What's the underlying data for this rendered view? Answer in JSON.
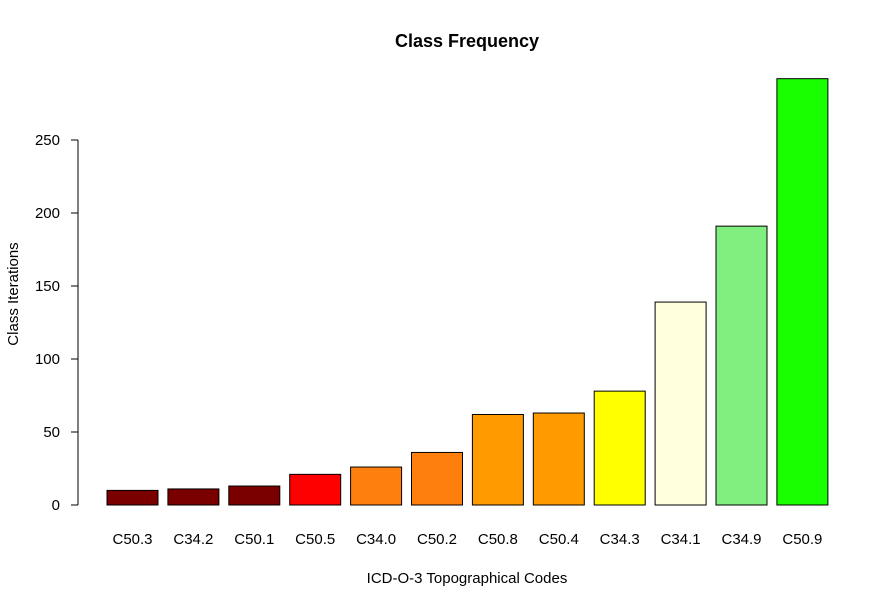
{
  "chart_data": {
    "type": "bar",
    "title": "Class Frequency",
    "xlabel": "ICD-O-3 Topographical Codes",
    "ylabel": "Class Iterations",
    "categories": [
      "C50.3",
      "C34.2",
      "C50.1",
      "C50.5",
      "C34.0",
      "C50.2",
      "C50.8",
      "C50.4",
      "C34.3",
      "C34.1",
      "C34.9",
      "C50.9"
    ],
    "values": [
      10,
      11,
      13,
      21,
      26,
      36,
      62,
      63,
      78,
      139,
      191,
      292
    ],
    "colors": [
      "#7a0000",
      "#7a0000",
      "#7a0000",
      "#ff0000",
      "#ff7f0e",
      "#ff7f0e",
      "#ff9a00",
      "#ff9a00",
      "#ffff00",
      "#ffffdd",
      "#80ef80",
      "#1aff00"
    ],
    "yticks": [
      0,
      50,
      100,
      150,
      200,
      250
    ],
    "ylim": [
      0,
      292
    ],
    "grid": false,
    "legend": "none"
  }
}
